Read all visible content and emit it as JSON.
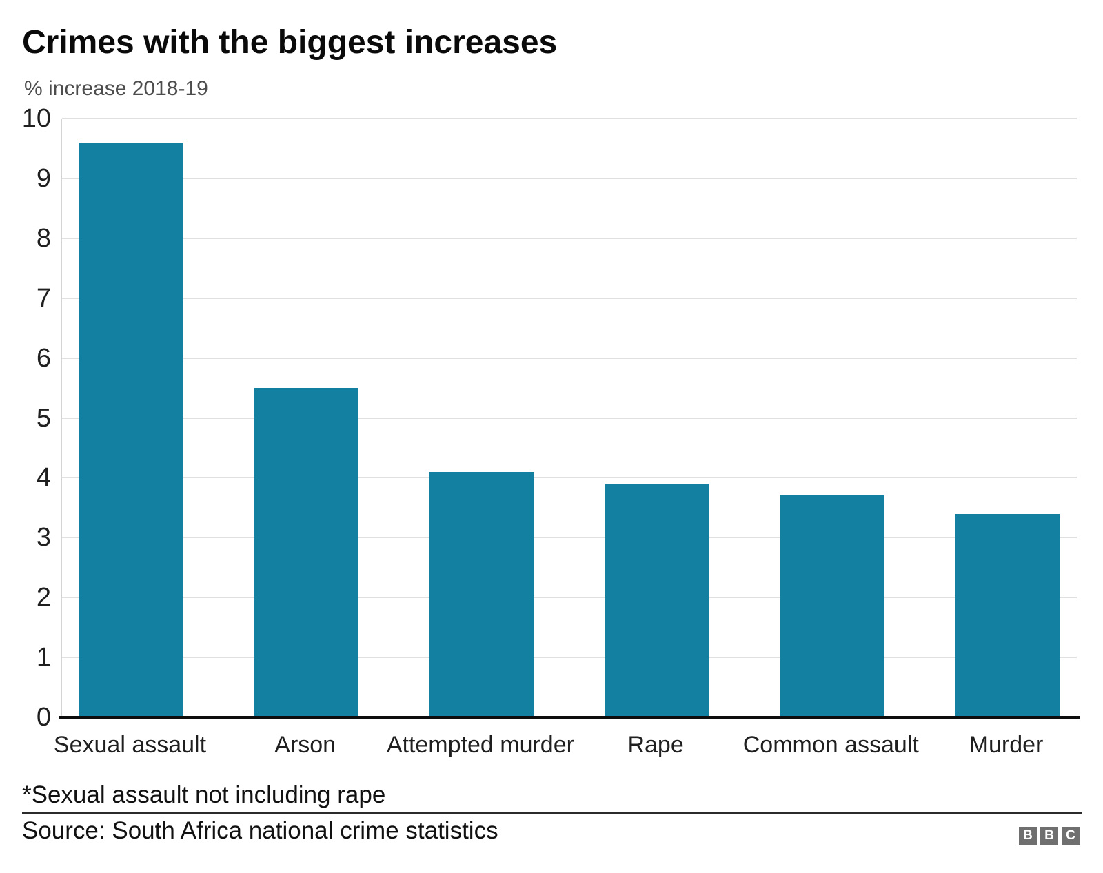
{
  "chart_data": {
    "type": "bar",
    "title": "Crimes with the biggest increases",
    "subtitle": "% increase 2018-19",
    "categories": [
      "Sexual assault",
      "Arson",
      "Attempted murder",
      "Rape",
      "Common assault",
      "Murder"
    ],
    "values": [
      9.6,
      5.5,
      4.1,
      3.9,
      3.7,
      3.4
    ],
    "ylabel": "",
    "xlabel": "",
    "ylim": [
      0,
      10
    ],
    "yticks": [
      0,
      1,
      2,
      3,
      4,
      5,
      6,
      7,
      8,
      9,
      10
    ],
    "grid": "horizontal",
    "legend": "none",
    "bar_color": "#1380A1"
  },
  "footer": {
    "footnote": "*Sexual assault not including rape",
    "source": "Source: South Africa national crime statistics",
    "logo_letters": [
      "B",
      "B",
      "C"
    ]
  },
  "colors": {
    "bar": "#1380A1",
    "gridline": "#e0e0e0",
    "axis_line": "#0d0d0d",
    "title_text": "#0a0a0a",
    "subtitle_text": "#4d4d4d",
    "tick_text": "#1f1f1f",
    "logo_gray": "#6f6f6f",
    "background": "#ffffff"
  }
}
